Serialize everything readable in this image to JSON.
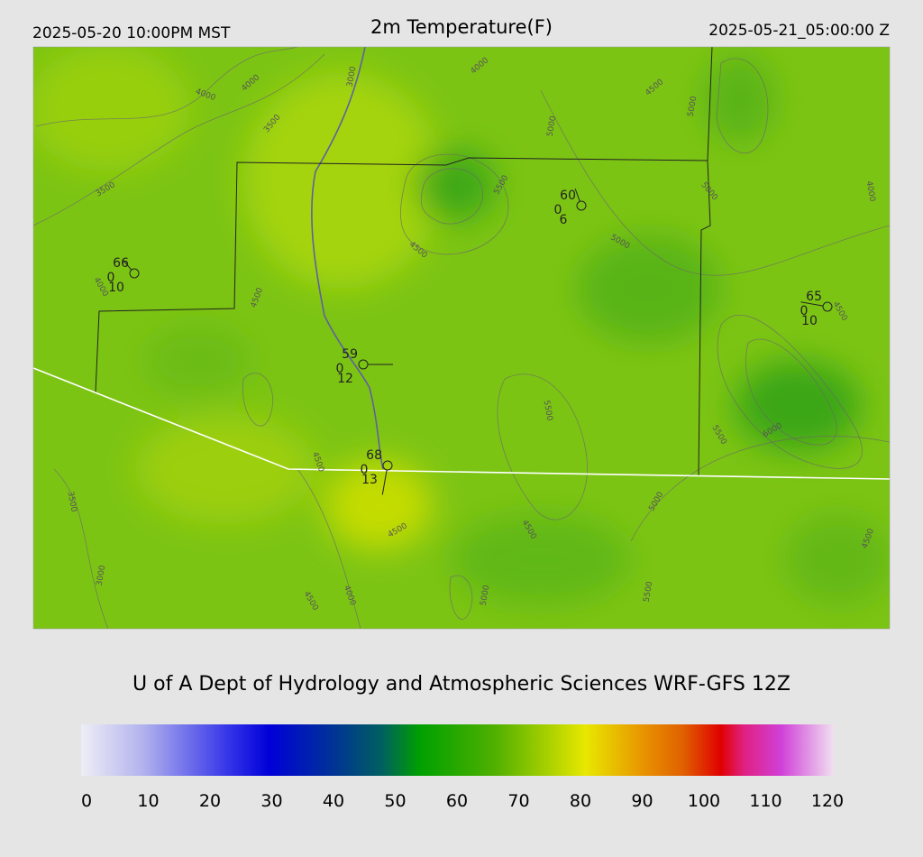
{
  "header": {
    "left": "2025-05-20 10:00PM MST",
    "title": "2m Temperature(F)",
    "right": "2025-05-21_05:00:00 Z"
  },
  "stations": [
    {
      "temperature": 66,
      "left": 0,
      "bottom": 10
    },
    {
      "temperature": 60,
      "left": 0,
      "bottom": 6
    },
    {
      "temperature": 65,
      "left": 0,
      "bottom": 10
    },
    {
      "temperature": 59,
      "left": 0,
      "bottom": 12
    },
    {
      "temperature": 68,
      "left": 0,
      "bottom": 13
    }
  ],
  "contour_labels": [
    4000,
    4000,
    3000,
    4000,
    4500,
    5000,
    3500,
    5000,
    3500,
    5500,
    5000,
    4000,
    5000,
    4500,
    4000,
    4500,
    4500,
    5500,
    5500,
    6000,
    4500,
    5000,
    3500,
    4500,
    4500,
    4500,
    3000,
    4000,
    4500,
    5000,
    5500
  ],
  "footer": "U of A Dept of Hydrology and Atmospheric Sciences WRF-GFS 12Z",
  "colorbar": {
    "range": [
      0,
      120
    ],
    "ticks": [
      0,
      10,
      20,
      30,
      40,
      50,
      60,
      70,
      80,
      90,
      100,
      110,
      120
    ]
  }
}
